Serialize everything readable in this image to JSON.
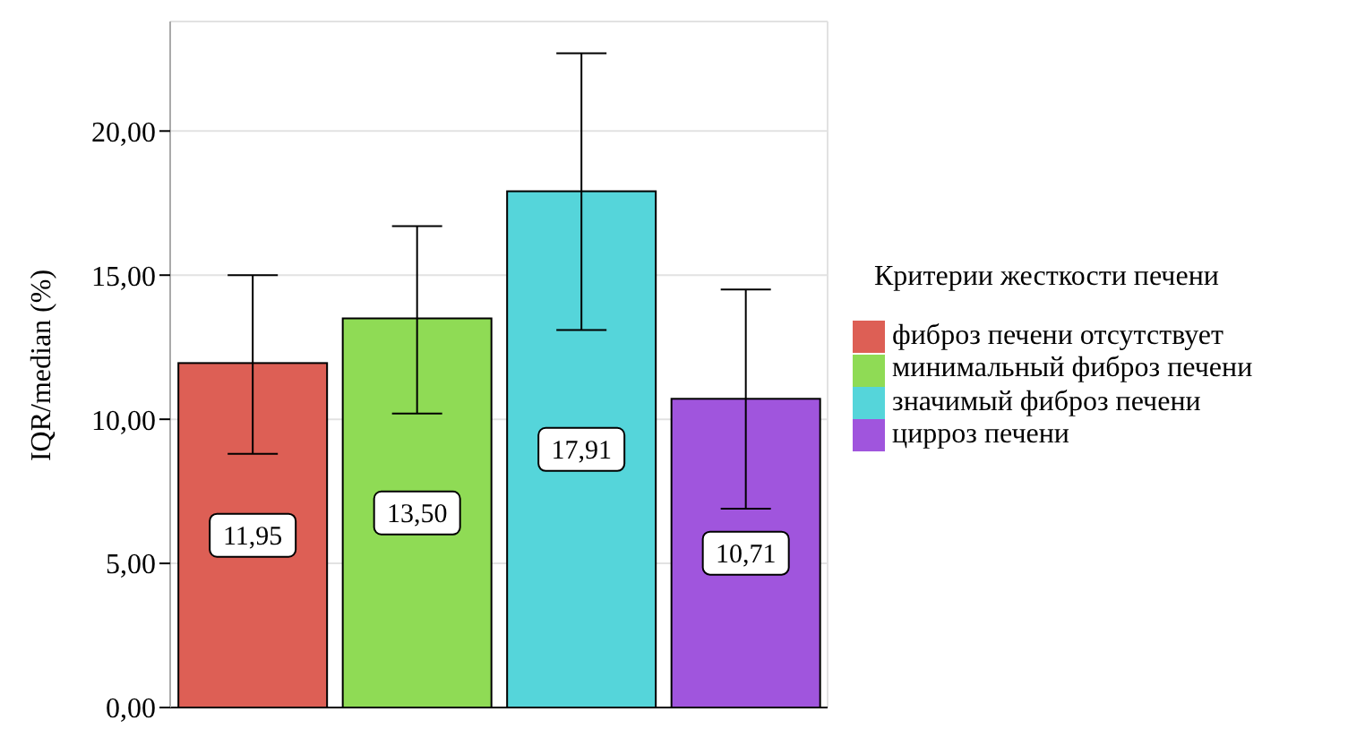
{
  "chart_data": {
    "type": "bar",
    "ylabel": "IQR/median (%)",
    "legend_title": "Критерии жесткости печени",
    "categories": [
      null,
      null,
      null,
      null
    ],
    "stacked": true,
    "series": [
      {
        "name": "фиброз печени отсутствует",
        "color": "#dd5f55",
        "values": [
          11.95,
          null,
          null,
          null
        ],
        "errors": [
          [
            8.8,
            15.0
          ],
          null,
          null,
          null
        ],
        "value_labels": [
          "11,95",
          null,
          null,
          null
        ]
      },
      {
        "name": "минимальный фиброз печени",
        "color": "#8fdb55",
        "values": [
          null,
          13.5,
          null,
          null
        ],
        "errors": [
          null,
          [
            10.2,
            16.7
          ],
          null,
          null
        ],
        "value_labels": [
          null,
          "13,50",
          null,
          null
        ]
      },
      {
        "name": "значимый фиброз печени",
        "color": "#55d5da",
        "values": [
          null,
          null,
          17.91,
          null
        ],
        "errors": [
          null,
          null,
          [
            13.1,
            22.7
          ],
          null
        ],
        "value_labels": [
          null,
          null,
          "17,91",
          null
        ]
      },
      {
        "name": "цирроз печени",
        "color": "#a055dd",
        "values": [
          null,
          null,
          null,
          10.71
        ],
        "errors": [
          null,
          null,
          null,
          [
            6.9,
            14.5
          ]
        ],
        "value_labels": [
          null,
          null,
          null,
          "10,71"
        ]
      }
    ],
    "ylim": [
      0,
      23.8
    ],
    "yticks": [
      {
        "value": 0,
        "label": "0,00"
      },
      {
        "value": 5,
        "label": "5,00"
      },
      {
        "value": 10,
        "label": "10,00"
      },
      {
        "value": 15,
        "label": "15,00"
      },
      {
        "value": 20,
        "label": "20,00"
      }
    ],
    "grid": true,
    "legend": "right",
    "tick_labels": "y"
  }
}
